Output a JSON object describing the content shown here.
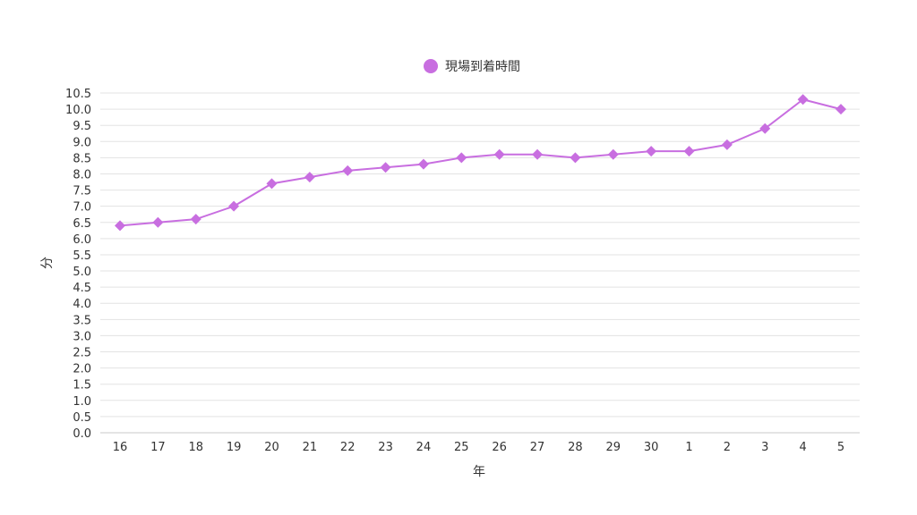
{
  "chart_data": {
    "type": "line",
    "title": "",
    "xlabel": "年",
    "ylabel": "分",
    "categories": [
      "16",
      "17",
      "18",
      "19",
      "20",
      "21",
      "22",
      "23",
      "24",
      "25",
      "26",
      "27",
      "28",
      "29",
      "30",
      "1",
      "2",
      "3",
      "4",
      "5"
    ],
    "series": [
      {
        "name": "現場到着時間",
        "color": "#c86ee0",
        "marker": "diamond",
        "values": [
          6.4,
          6.5,
          6.6,
          7.0,
          7.7,
          7.9,
          8.1,
          8.2,
          8.3,
          8.5,
          8.6,
          8.6,
          8.5,
          8.6,
          8.7,
          8.7,
          8.9,
          9.4,
          10.3,
          10.0
        ]
      }
    ],
    "ylim": [
      0,
      10.5
    ],
    "ytick_step": 0.5,
    "grid": true,
    "legend_position": "top-center"
  }
}
